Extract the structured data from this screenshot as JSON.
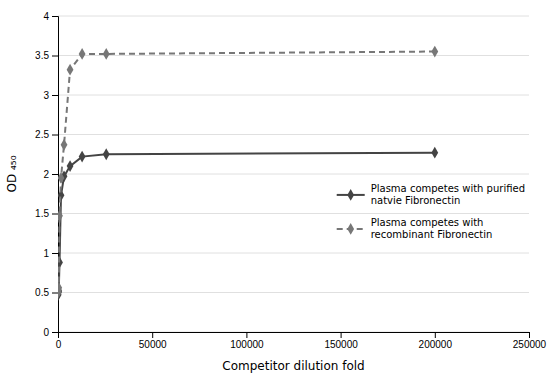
{
  "chart_data": {
    "type": "line",
    "xlabel": "Competitor dilution fold",
    "ylabel": "OD ₄₅₀",
    "x": [
      100,
      200,
      400,
      800,
      1600,
      3200,
      6400,
      12800,
      25600,
      200000
    ],
    "series": [
      {
        "name": "Plasma competes with purified\nnatvie Fibronectin",
        "color": "#444444",
        "line_style": "solid",
        "marker": "diamond",
        "values": [
          0.47,
          0.5,
          0.52,
          0.88,
          1.73,
          1.97,
          2.1,
          2.22,
          2.25,
          2.27
        ]
      },
      {
        "name": "Plasma competes with\nrecombinant Fibronectin",
        "color": "#777777",
        "line_style": "dashed",
        "marker": "diamond",
        "values": [
          0.5,
          0.53,
          0.56,
          1.47,
          1.95,
          2.37,
          3.32,
          3.52,
          3.52,
          3.55
        ]
      }
    ],
    "xlim": [
      0,
      250000
    ],
    "ylim": [
      0,
      4
    ],
    "xticks": [
      0,
      50000,
      100000,
      150000,
      200000,
      250000
    ],
    "yticks": [
      0,
      0.5,
      1,
      1.5,
      2,
      2.5,
      3,
      3.5,
      4
    ],
    "grid": true,
    "legend": "right"
  }
}
